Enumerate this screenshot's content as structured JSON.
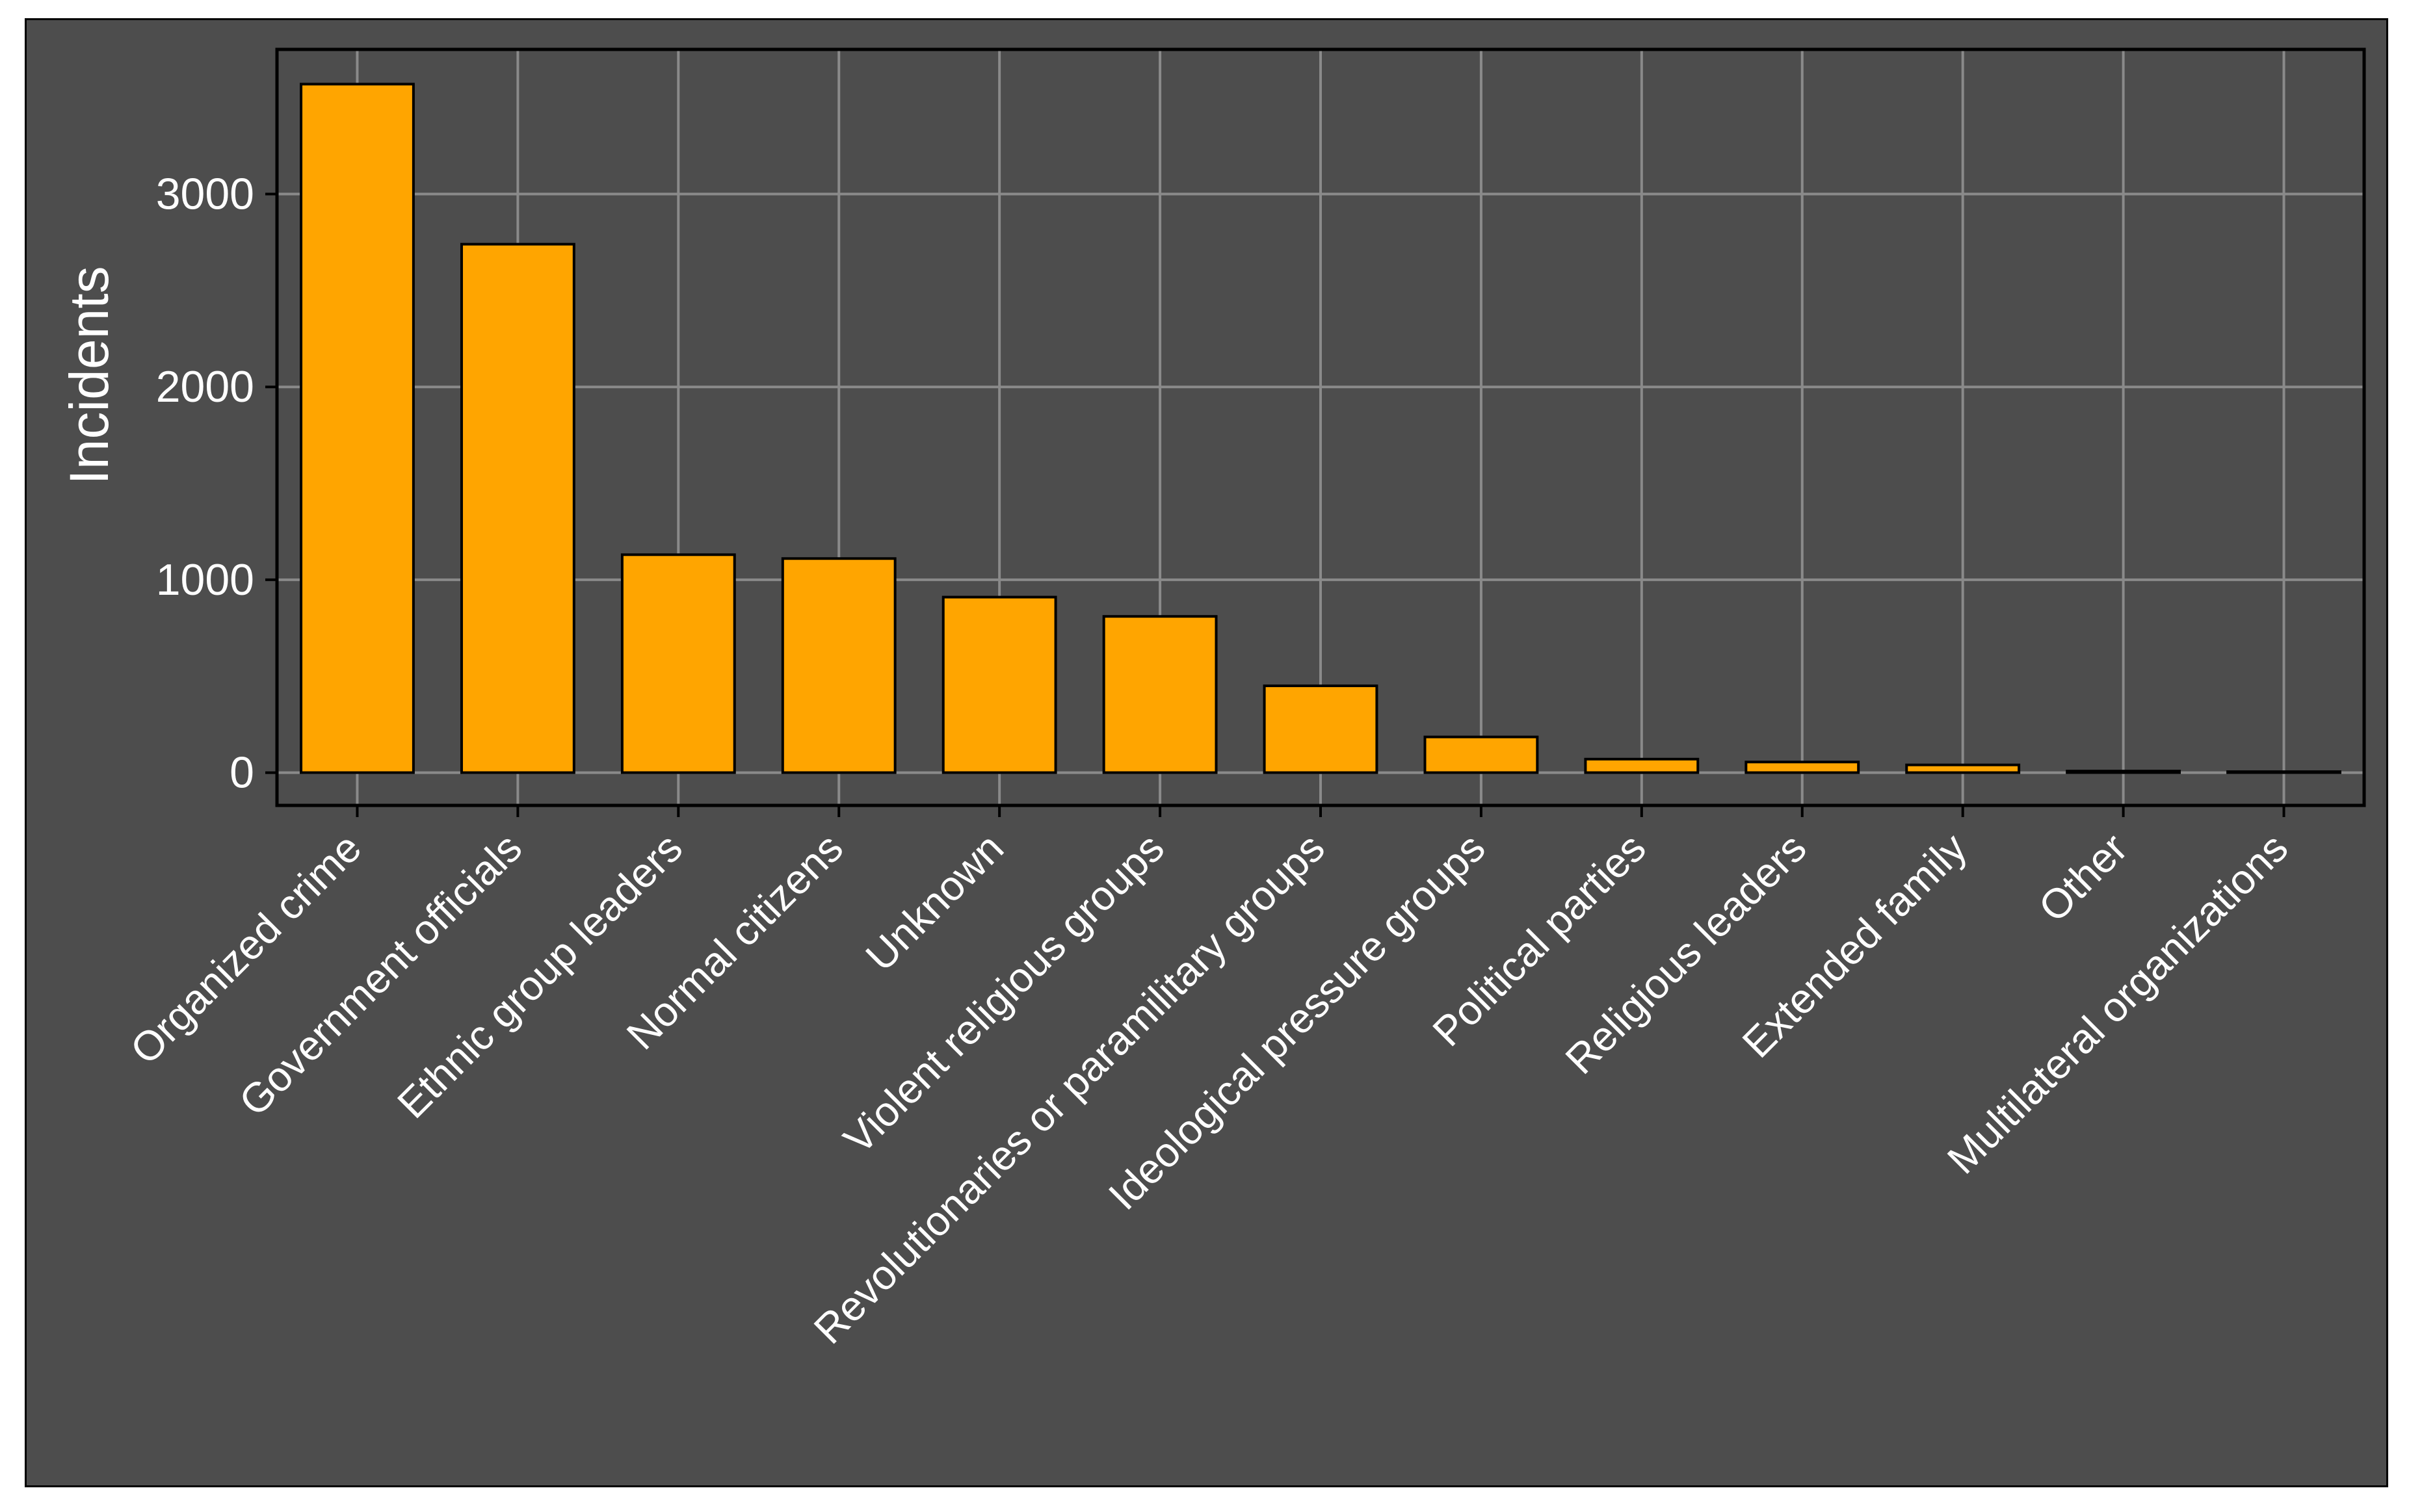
{
  "chart_data": {
    "type": "bar",
    "title": "",
    "xlabel": "",
    "ylabel": "Incidents",
    "categories": [
      "Organized crime",
      "Government officials",
      "Ethnic group leaders",
      "Normal citizens",
      "Unknown",
      "Violent religious groups",
      "Revolutionaries or paramilitary groups",
      "Ideological pressure groups",
      "Political parties",
      "Religious leaders",
      "Extended family",
      "Other",
      "Multilateral organizations"
    ],
    "values": [
      3570,
      2740,
      1130,
      1110,
      910,
      810,
      450,
      185,
      70,
      55,
      40,
      8,
      5
    ],
    "ylim": [
      -170,
      3750
    ],
    "yticks": [
      0,
      1000,
      2000,
      3000
    ],
    "ytick_labels": [
      "0",
      "1000",
      "2000",
      "3000"
    ],
    "grid": true,
    "legend": "none",
    "colors": {
      "bar_fill": "#FFA500",
      "bar_stroke": "#000000",
      "panel_background": "#4d4d4d",
      "grid_line": "#8a8a8a",
      "text": "#ffffff"
    }
  }
}
